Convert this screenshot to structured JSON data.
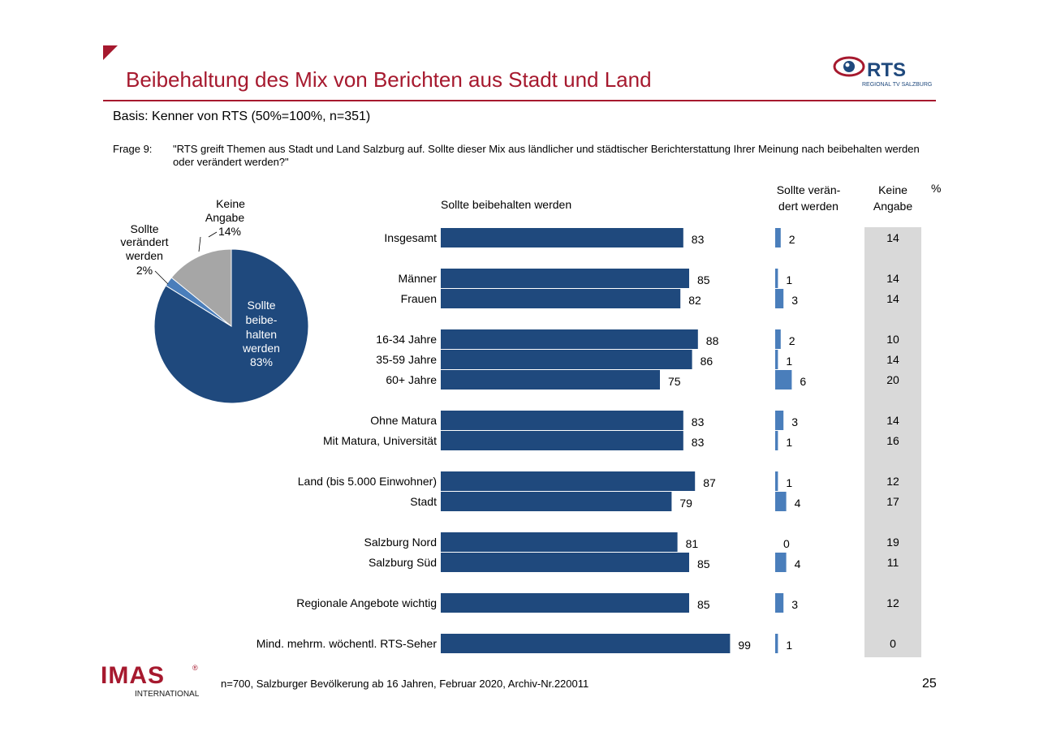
{
  "title": "Beibehaltung des Mix von Berichten aus Stadt und Land",
  "basis": "Basis:  Kenner von RTS (50%=100%, n=351)",
  "question": {
    "label": "Frage 9:",
    "text": "\"RTS greift Themen aus Stadt und Land Salzburg auf. Sollte dieser Mix aus ländlicher und städtischer Berichterstattung Ihrer Meinung nach beibehalten werden oder verändert werden?\""
  },
  "headers": {
    "keep": "Sollte beibehalten werden",
    "change_line1": "Sollte verän-",
    "change_line2": "dert werden",
    "none_line1": "Keine",
    "none_line2": "Angabe",
    "percent": "%"
  },
  "pie_labels": {
    "keine_l1": "Keine",
    "keine_l2": "Angabe",
    "keine_pct": "14%",
    "veraendert_l1": "Sollte",
    "veraendert_l2": "verändert",
    "veraendert_l3": "werden",
    "veraendert_pct": "2%",
    "beibehalten_l1": "Sollte",
    "beibehalten_l2": "beibe-",
    "beibehalten_l3": "halten",
    "beibehalten_l4": "werden",
    "beibehalten_pct": "83%"
  },
  "footer": {
    "note": "n=700, Salzburger Bevölkerung ab 16 Jahren, Februar 2020, Archiv-Nr.220011",
    "page": "25"
  },
  "logos": {
    "rts_text": "RTS",
    "rts_sub": "REGIONAL TV SALZBURG",
    "imas_text": "IMAS",
    "imas_sub": "INTERNATIONAL",
    "imas_reg": "®"
  },
  "colors": {
    "accent_red": "#a6192e",
    "bar_dark_blue": "#1f497d",
    "bar_light_blue": "#4a7ebb",
    "pie_grey": "#a6a6a6",
    "column_shade": "#d9d9d9"
  },
  "chart_data": [
    {
      "type": "pie",
      "slices": [
        {
          "label": "Sollte beibehalten werden",
          "value": 83
        },
        {
          "label": "Sollte verändert werden",
          "value": 2
        },
        {
          "label": "Keine Angabe",
          "value": 14
        }
      ]
    },
    {
      "type": "bar",
      "categories": [
        "Insgesamt",
        "Männer",
        "Frauen",
        "16-34 Jahre",
        "35-59 Jahre",
        "60+ Jahre",
        "Ohne Matura",
        "Mit Matura, Universität",
        "Land (bis 5.000 Einwohner)",
        "Stadt",
        "Salzburg Nord",
        "Salzburg Süd",
        "Regionale Angebote wichtig",
        "Mind. mehrm. wöchentl. RTS-Seher"
      ],
      "series": [
        {
          "name": "Sollte beibehalten werden",
          "values": [
            83,
            85,
            82,
            88,
            86,
            75,
            83,
            83,
            87,
            79,
            81,
            85,
            85,
            99
          ]
        },
        {
          "name": "Sollte verändert werden",
          "values": [
            2,
            1,
            3,
            2,
            1,
            6,
            3,
            1,
            1,
            4,
            0,
            4,
            3,
            1
          ]
        },
        {
          "name": "Keine Angabe",
          "values": [
            14,
            14,
            14,
            10,
            14,
            20,
            14,
            16,
            12,
            17,
            19,
            11,
            12,
            0
          ]
        }
      ],
      "unit": "%"
    }
  ]
}
